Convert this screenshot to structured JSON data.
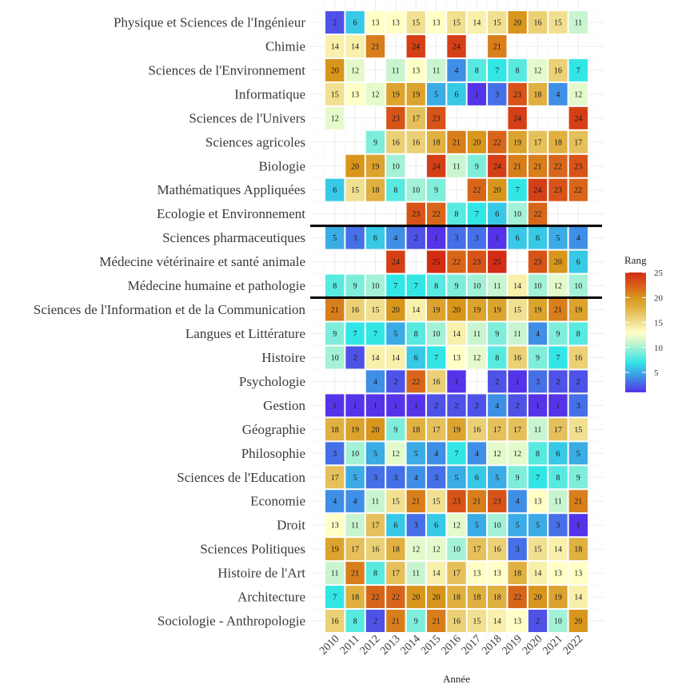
{
  "chart_data": {
    "type": "heatmap",
    "xlabel": "Année",
    "ylabel": "",
    "legend": {
      "title": "Rang",
      "position": "right",
      "ticks": [
        5,
        10,
        15,
        20,
        25
      ],
      "range": [
        1,
        25
      ]
    },
    "grid": true,
    "x": [
      "2010",
      "2011",
      "2012",
      "2013",
      "2014",
      "2015",
      "2016",
      "2017",
      "2018",
      "2019",
      "2020",
      "2021",
      "2022"
    ],
    "rows": [
      {
        "label": "Physique et Sciences de l'Ingénieur",
        "values": [
          2,
          6,
          13,
          13,
          15,
          13,
          15,
          14,
          15,
          20,
          16,
          15,
          11
        ]
      },
      {
        "label": "Chimie",
        "values": [
          14,
          14,
          21,
          null,
          24,
          null,
          24,
          null,
          21,
          null,
          null,
          null,
          null
        ]
      },
      {
        "label": "Sciences de l'Environnement",
        "values": [
          20,
          12,
          null,
          11,
          13,
          11,
          4,
          8,
          7,
          8,
          12,
          16,
          7
        ]
      },
      {
        "label": "Informatique",
        "values": [
          15,
          13,
          12,
          19,
          19,
          5,
          6,
          1,
          3,
          23,
          18,
          4,
          12
        ]
      },
      {
        "label": "Sciences de l'Univers",
        "values": [
          12,
          null,
          null,
          23,
          17,
          23,
          null,
          null,
          null,
          24,
          null,
          null,
          24
        ]
      },
      {
        "label": "Sciences agricoles",
        "values": [
          null,
          null,
          9,
          16,
          16,
          18,
          21,
          20,
          22,
          19,
          17,
          18,
          17
        ]
      },
      {
        "label": "Biologie",
        "values": [
          null,
          20,
          19,
          10,
          null,
          24,
          11,
          9,
          24,
          21,
          21,
          22,
          23
        ]
      },
      {
        "label": "Mathématiques Appliquées",
        "values": [
          6,
          15,
          18,
          8,
          10,
          9,
          null,
          22,
          20,
          7,
          24,
          23,
          22
        ]
      },
      {
        "label": "Ecologie et Environnement",
        "values": [
          null,
          null,
          null,
          null,
          23,
          22,
          8,
          7,
          6,
          10,
          22,
          null,
          null
        ]
      },
      {
        "label": "Sciences pharmaceutiques",
        "values": [
          5,
          3,
          6,
          4,
          2,
          1,
          3,
          3,
          1,
          6,
          6,
          5,
          4
        ]
      },
      {
        "label": "Médecine vétérinaire et santé animale",
        "values": [
          null,
          null,
          null,
          24,
          null,
          25,
          22,
          23,
          25,
          null,
          23,
          20,
          6
        ]
      },
      {
        "label": "Médecine humaine et pathologie",
        "values": [
          8,
          9,
          10,
          7,
          7,
          8,
          9,
          10,
          11,
          14,
          10,
          12,
          10
        ]
      },
      {
        "label": "Sciences de l'Information et de la Communication",
        "values": [
          21,
          16,
          15,
          20,
          14,
          19,
          20,
          19,
          19,
          15,
          19,
          21,
          19
        ]
      },
      {
        "label": "Langues et Littérature",
        "values": [
          9,
          7,
          7,
          5,
          8,
          10,
          14,
          11,
          9,
          11,
          4,
          9,
          8
        ]
      },
      {
        "label": "Histoire",
        "values": [
          10,
          2,
          14,
          14,
          6,
          7,
          13,
          12,
          8,
          16,
          9,
          7,
          16
        ]
      },
      {
        "label": "Psychologie",
        "values": [
          null,
          null,
          4,
          2,
          22,
          16,
          1,
          null,
          2,
          1,
          3,
          2,
          2
        ]
      },
      {
        "label": "Gestion",
        "values": [
          1,
          1,
          1,
          1,
          1,
          2,
          2,
          2,
          4,
          2,
          1,
          1,
          3
        ]
      },
      {
        "label": "Géographie",
        "values": [
          18,
          19,
          20,
          9,
          18,
          17,
          19,
          16,
          17,
          17,
          11,
          17,
          15
        ]
      },
      {
        "label": "Philosophie",
        "values": [
          3,
          10,
          5,
          12,
          5,
          4,
          7,
          4,
          12,
          12,
          8,
          6,
          5
        ]
      },
      {
        "label": "Sciences de l'Education",
        "values": [
          17,
          5,
          3,
          3,
          4,
          3,
          5,
          6,
          5,
          9,
          7,
          8,
          9
        ]
      },
      {
        "label": "Economie",
        "values": [
          4,
          4,
          11,
          15,
          21,
          15,
          23,
          21,
          23,
          4,
          13,
          11,
          21
        ]
      },
      {
        "label": "Droit",
        "values": [
          13,
          11,
          17,
          6,
          3,
          6,
          12,
          5,
          10,
          5,
          5,
          3,
          1
        ]
      },
      {
        "label": "Sciences Politiques",
        "values": [
          19,
          17,
          16,
          18,
          12,
          12,
          10,
          17,
          16,
          3,
          15,
          14,
          18
        ]
      },
      {
        "label": "Histoire de l'Art",
        "values": [
          11,
          21,
          8,
          17,
          11,
          14,
          17,
          13,
          13,
          18,
          14,
          13,
          13
        ]
      },
      {
        "label": "Architecture",
        "values": [
          7,
          18,
          22,
          22,
          20,
          20,
          18,
          18,
          18,
          22,
          20,
          19,
          14
        ]
      },
      {
        "label": "Sociologie - Anthropologie",
        "values": [
          16,
          8,
          2,
          21,
          9,
          21,
          16,
          15,
          14,
          13,
          2,
          10,
          20
        ]
      }
    ],
    "separators_after_rows": [
      8,
      11
    ]
  },
  "colors": {
    "scale": [
      "#5533e8",
      "#3f8fe6",
      "#33e6e6",
      "#c8f5d0",
      "#ffffc6",
      "#f0e090",
      "#e0b040",
      "#d8961c",
      "#d8661a",
      "#d42c14"
    ],
    "scale_stops": [
      1,
      4,
      7,
      11,
      13,
      15,
      18,
      20,
      22,
      25
    ],
    "gridline": "#ebebeb",
    "separator": "#000000"
  }
}
